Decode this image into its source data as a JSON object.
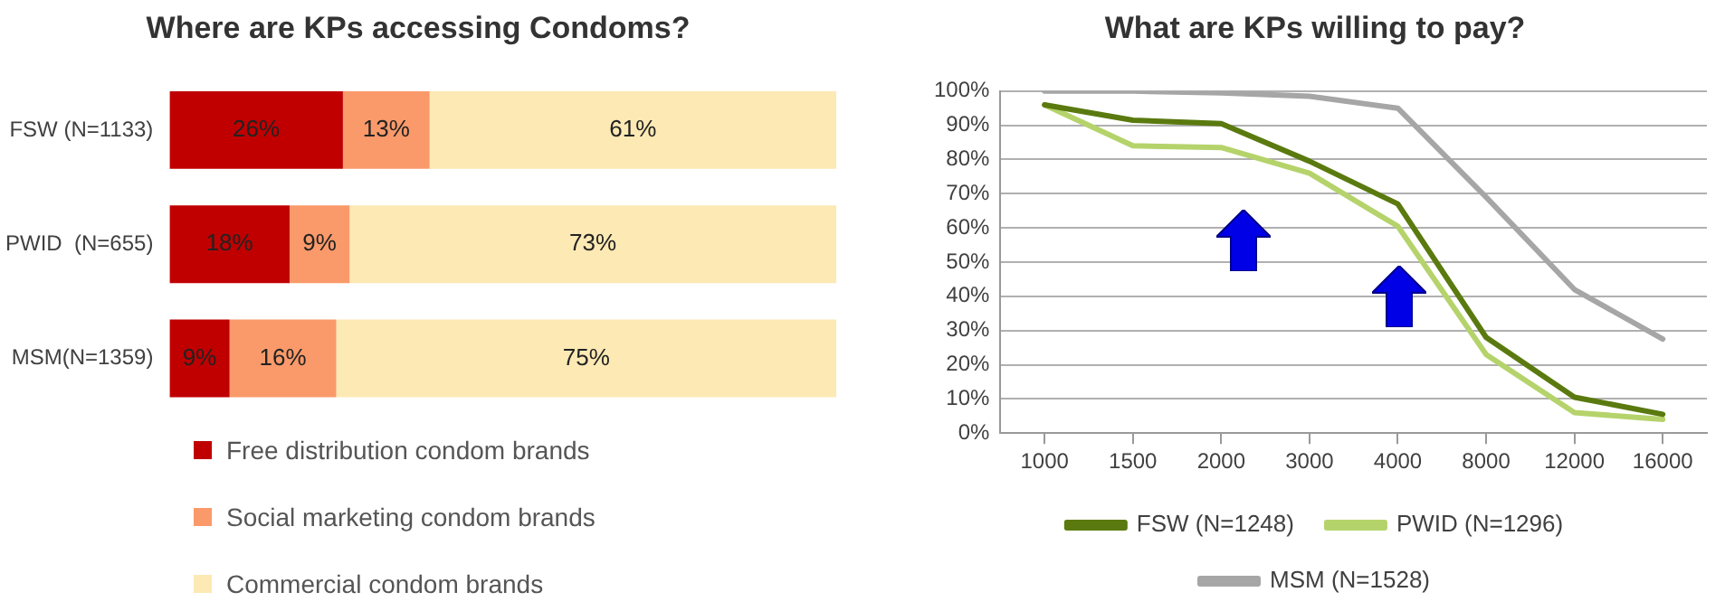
{
  "chart_data": [
    {
      "type": "bar",
      "orientation": "horizontal",
      "stacked": true,
      "title": "Where are KPs accessing Condoms?",
      "categories": [
        "FSW (N=1133)",
        "PWID  (N=655)",
        "MSM(N=1359)"
      ],
      "series": [
        {
          "name": "Free distribution condom brands",
          "color": "#c00000",
          "values": [
            26,
            18,
            9
          ],
          "value_labels": [
            "26%",
            "18%",
            "9%"
          ]
        },
        {
          "name": "Social marketing condom brands",
          "color": "#fa9a6a",
          "values": [
            13,
            9,
            16
          ],
          "value_labels": [
            "13%",
            "9%",
            "16%"
          ]
        },
        {
          "name": "Commercial condom brands",
          "color": "#fde9b4",
          "values": [
            61,
            73,
            75
          ],
          "value_labels": [
            "61%",
            "73%",
            "75%"
          ]
        }
      ],
      "legend": "bottom",
      "tick_labels": "y",
      "grid": false
    },
    {
      "type": "line",
      "title": "What are KPs willing to pay?",
      "categories": [
        "1000",
        "1500",
        "2000",
        "3000",
        "4000",
        "8000",
        "12000",
        "16000"
      ],
      "series": [
        {
          "name": "FSW (N=1248)",
          "color": "#5a7a0f",
          "values": [
            96,
            91.5,
            90.5,
            79.5,
            67,
            28,
            10.5,
            5.5
          ]
        },
        {
          "name": "PWID (N=1296)",
          "color": "#b5d36b",
          "values": [
            96,
            84,
            83.5,
            76,
            60.5,
            23,
            6,
            4
          ]
        },
        {
          "name": "MSM (N=1528)",
          "color": "#a6a6a6",
          "values": [
            100,
            100,
            99.5,
            98.5,
            95,
            69,
            42,
            27.5
          ]
        }
      ],
      "ylim": [
        0,
        100
      ],
      "yticks": [
        {
          "value": 0,
          "label": "0%"
        },
        {
          "value": 10,
          "label": "10%"
        },
        {
          "value": 20,
          "label": "20%"
        },
        {
          "value": 30,
          "label": "30%"
        },
        {
          "value": 40,
          "label": "40%"
        },
        {
          "value": 50,
          "label": "50%"
        },
        {
          "value": 60,
          "label": "60%"
        },
        {
          "value": 70,
          "label": "70%"
        },
        {
          "value": 80,
          "label": "80%"
        },
        {
          "value": 90,
          "label": "90%"
        },
        {
          "value": 100,
          "label": "100%"
        }
      ],
      "grid": "y",
      "legend": "bottom",
      "marker": "none",
      "line_style": "solid"
    }
  ]
}
